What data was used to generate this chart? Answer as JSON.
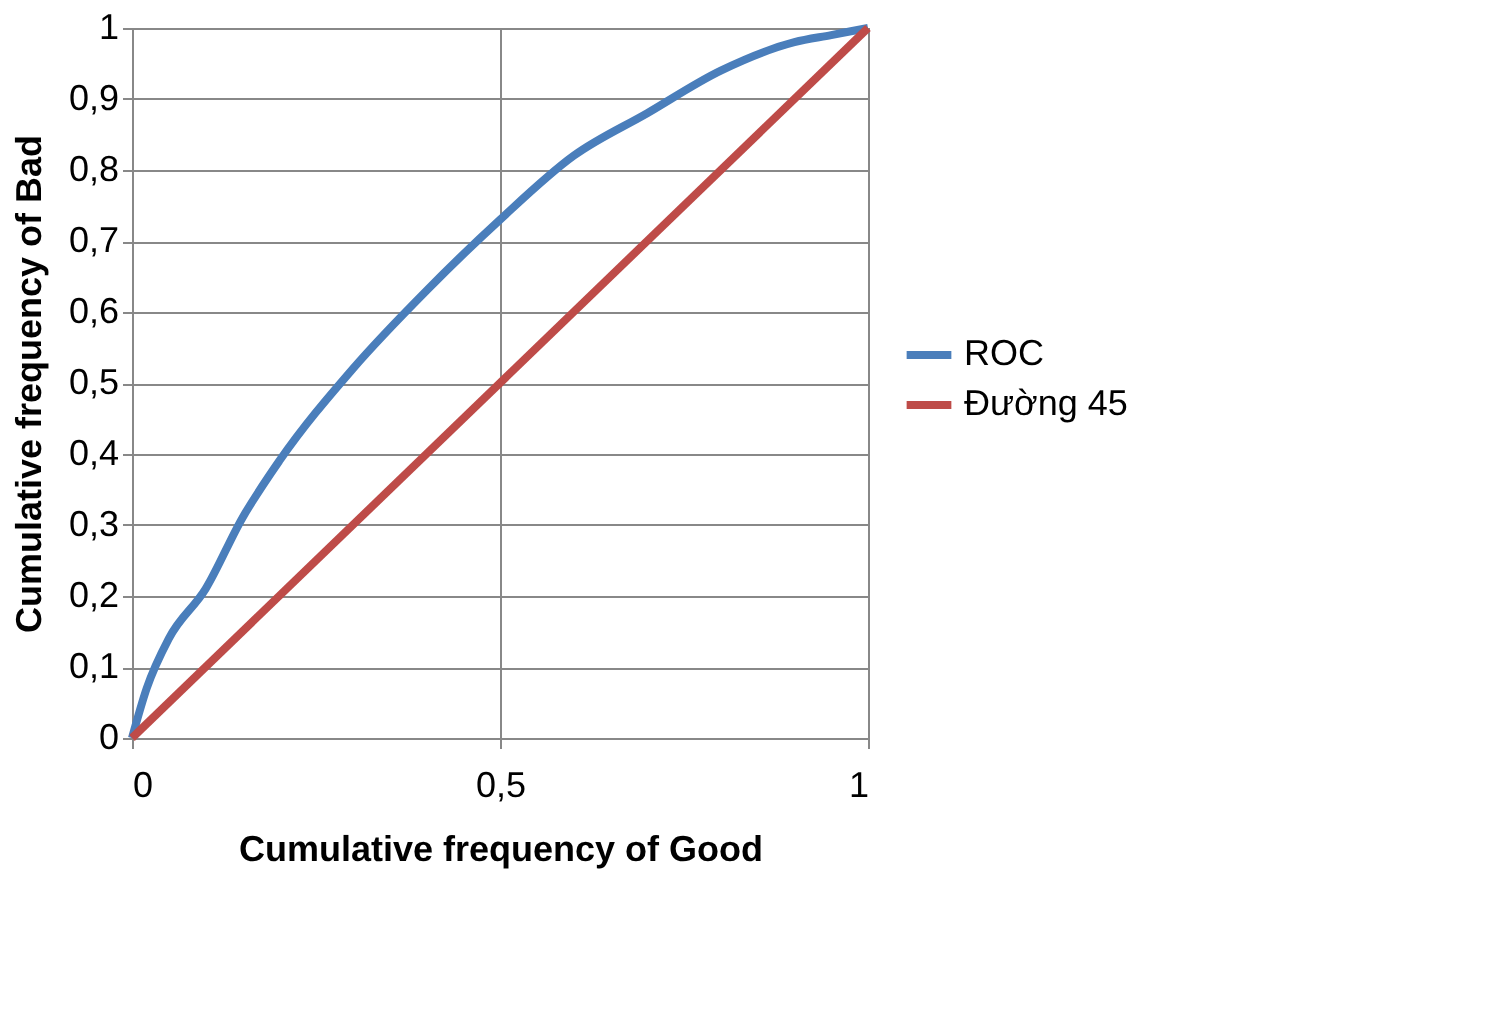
{
  "chart_data": {
    "type": "line",
    "xlabel": "Cumulative frequency of Good",
    "ylabel": "Cumulative frequency of Bad",
    "xlim": [
      0,
      1
    ],
    "ylim": [
      0,
      1
    ],
    "xticks": [
      0,
      {
        "value": 0.5,
        "label": "0,5"
      },
      1
    ],
    "yticks": [
      0,
      {
        "value": 0.1,
        "label": "0,1"
      },
      {
        "value": 0.2,
        "label": "0,2"
      },
      {
        "value": 0.3,
        "label": "0,3"
      },
      {
        "value": 0.4,
        "label": "0,4"
      },
      {
        "value": 0.5,
        "label": "0,5"
      },
      {
        "value": 0.6,
        "label": "0,6"
      },
      {
        "value": 0.7,
        "label": "0,7"
      },
      {
        "value": 0.8,
        "label": "0,8"
      },
      {
        "value": 0.9,
        "label": "0,9"
      },
      1
    ],
    "grid": true,
    "legend": "right",
    "marker": "none",
    "line_style": "solid",
    "series": [
      {
        "name": "ROC",
        "color": "#4a7ebb",
        "x": [
          0,
          0.02,
          0.05,
          0.1,
          0.15,
          0.2,
          0.3,
          0.4,
          0.5,
          0.6,
          0.7,
          0.8,
          0.9,
          0.95,
          1
        ],
        "values": [
          0,
          0.07,
          0.14,
          0.21,
          0.31,
          0.39,
          0.52,
          0.63,
          0.73,
          0.82,
          0.88,
          0.94,
          0.98,
          0.99,
          1
        ]
      },
      {
        "name": "Đường 45",
        "color": "#be4b48",
        "x": [
          0,
          1
        ],
        "values": [
          0,
          1
        ]
      }
    ]
  }
}
